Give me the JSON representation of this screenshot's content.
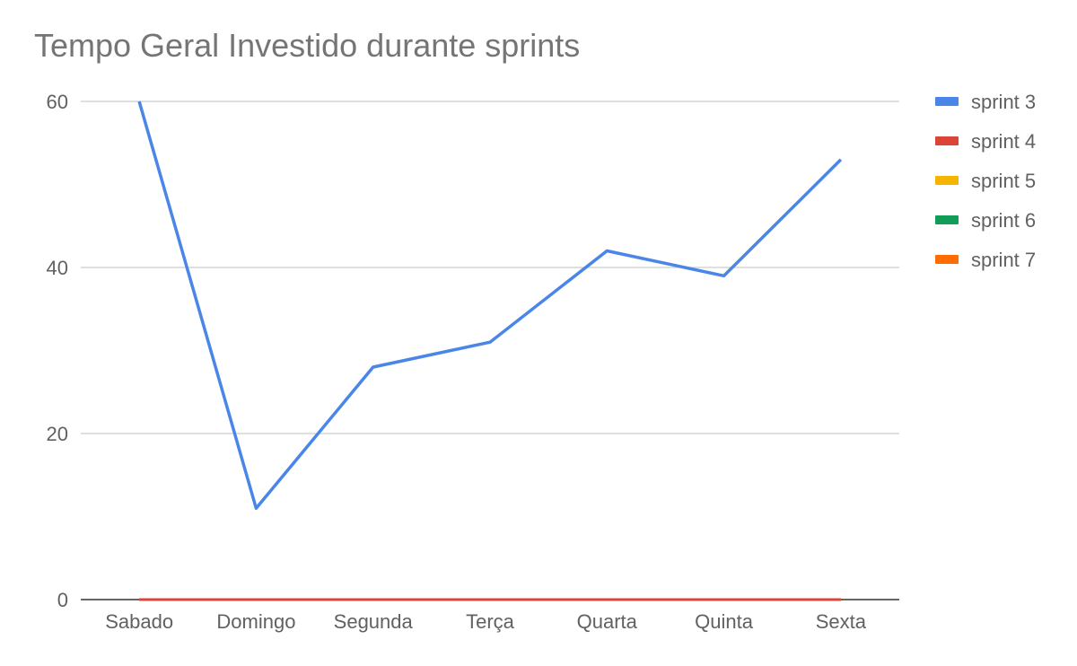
{
  "chart_data": {
    "type": "line",
    "title": "Tempo Geral Investido durante sprints",
    "xlabel": "",
    "ylabel": "",
    "categories": [
      "Sabado",
      "Domingo",
      "Segunda",
      "Terça",
      "Quarta",
      "Quinta",
      "Sexta"
    ],
    "y_ticks": [
      0,
      20,
      40,
      60
    ],
    "ylim": [
      0,
      60
    ],
    "grid": true,
    "legend_position": "right",
    "series": [
      {
        "name": "sprint 3",
        "color": "#4a86e8",
        "values": [
          60,
          11,
          28,
          31,
          42,
          39,
          53
        ]
      },
      {
        "name": "sprint 4",
        "color": "#db4437",
        "values": [
          0,
          0,
          0,
          0,
          0,
          0,
          0
        ]
      },
      {
        "name": "sprint 5",
        "color": "#f4b400",
        "values": [
          0,
          0,
          0,
          0,
          0,
          0,
          0
        ]
      },
      {
        "name": "sprint 6",
        "color": "#0f9d58",
        "values": [
          0,
          0,
          0,
          0,
          0,
          0,
          0
        ]
      },
      {
        "name": "sprint 7",
        "color": "#ff6d00",
        "values": [
          0,
          0,
          0,
          0,
          0,
          0,
          0
        ]
      }
    ]
  }
}
